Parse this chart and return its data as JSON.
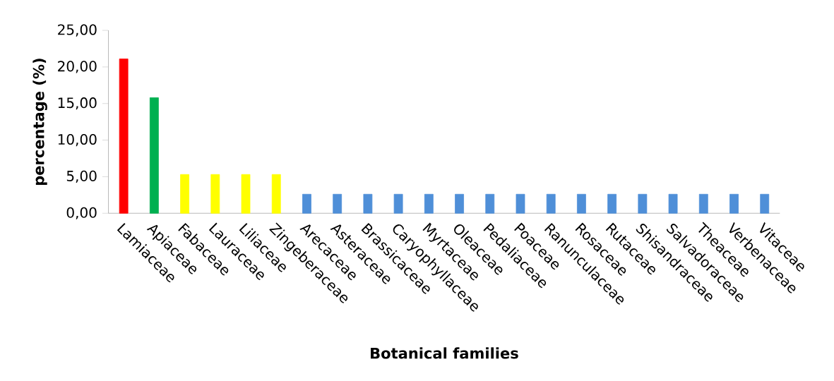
{
  "chart_data": {
    "type": "bar",
    "xlabel": "Botanical families",
    "ylabel": "percentage (%)",
    "categories": [
      "Lamiaceae",
      "Apiaceae",
      "Fabaceae",
      "Lauraceae",
      "Liliaceae",
      "Zingeberaceae",
      "Arecaceae",
      "Asteraceae",
      "Brassicaceae",
      "Caryophyllaceae",
      "Myrtaceae",
      "Oleaceae",
      "Pedaliaceae",
      "Poaceae",
      "Ranunculaceae",
      "Rosaceae",
      "Rutaceae",
      "Shisandraceae",
      "Salvadoraceae",
      "Theaceae",
      "Verbenaceae",
      "Vitaceae"
    ],
    "values": [
      21.1,
      15.8,
      5.3,
      5.3,
      5.3,
      5.3,
      2.6,
      2.6,
      2.6,
      2.6,
      2.6,
      2.6,
      2.6,
      2.6,
      2.6,
      2.6,
      2.6,
      2.6,
      2.6,
      2.6,
      2.6,
      2.6
    ],
    "colors": [
      "#ff0000",
      "#00b050",
      "#ffff00",
      "#ffff00",
      "#ffff00",
      "#ffff00",
      "#4f8fd8",
      "#4f8fd8",
      "#4f8fd8",
      "#4f8fd8",
      "#4f8fd8",
      "#4f8fd8",
      "#4f8fd8",
      "#4f8fd8",
      "#4f8fd8",
      "#4f8fd8",
      "#4f8fd8",
      "#4f8fd8",
      "#4f8fd8",
      "#4f8fd8",
      "#4f8fd8",
      "#4f8fd8"
    ],
    "ylim": [
      0,
      25
    ],
    "yticks": [
      {
        "value": 0,
        "label": "0,00"
      },
      {
        "value": 5,
        "label": "5,00"
      },
      {
        "value": 10,
        "label": "10,00"
      },
      {
        "value": 15,
        "label": "15,00"
      },
      {
        "value": 20,
        "label": "20,00"
      },
      {
        "value": 25,
        "label": "25,00"
      }
    ],
    "grid": false
  }
}
